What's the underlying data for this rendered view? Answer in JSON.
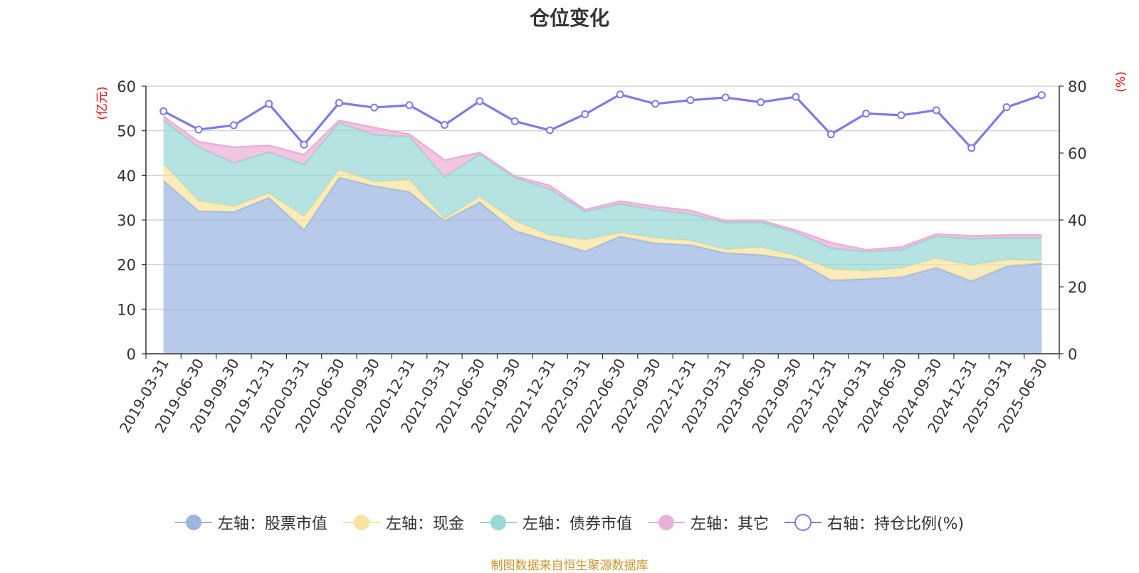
{
  "title": "仓位变化",
  "source_text": "制图数据来自恒生聚源数据库",
  "chart_data": {
    "type": "area",
    "categories": [
      "2019-03-31",
      "2019-06-30",
      "2019-09-30",
      "2019-12-31",
      "2020-03-31",
      "2020-06-30",
      "2020-09-30",
      "2020-12-31",
      "2021-03-31",
      "2021-06-30",
      "2021-09-30",
      "2021-12-31",
      "2022-03-31",
      "2022-06-30",
      "2022-09-30",
      "2022-12-31",
      "2023-03-31",
      "2023-06-30",
      "2023-09-30",
      "2023-12-31",
      "2024-03-31",
      "2024-06-30",
      "2024-09-30",
      "2024-12-31",
      "2025-03-31",
      "2025-06-30"
    ],
    "left_axis": {
      "unit": "(亿元)",
      "ylim": [
        0,
        60
      ],
      "ticks": [
        "0",
        "10",
        "20",
        "30",
        "40",
        "50",
        "60"
      ]
    },
    "right_axis": {
      "unit": "(%)",
      "ylim": [
        0,
        80
      ],
      "ticks": [
        "0",
        "20",
        "40",
        "60",
        "80"
      ]
    },
    "series": [
      {
        "name": "左轴：股票市值",
        "axis": "left",
        "stacked": true,
        "color": "#9bb6e2",
        "values": [
          38.8,
          32.0,
          31.8,
          35.0,
          27.8,
          39.5,
          37.6,
          36.3,
          29.8,
          34.0,
          27.6,
          25.3,
          23.0,
          26.3,
          24.8,
          24.4,
          22.6,
          22.2,
          21.0,
          16.5,
          16.8,
          17.2,
          19.3,
          16.3,
          19.6,
          20.3
        ]
      },
      {
        "name": "左轴：现金",
        "axis": "left",
        "stacked": true,
        "color": "#f8e3a1",
        "values": [
          3.8,
          2.3,
          1.3,
          1.0,
          3.0,
          1.8,
          1.0,
          2.7,
          0.5,
          1.2,
          2.2,
          1.3,
          2.6,
          0.8,
          1.2,
          1.0,
          0.8,
          1.7,
          1.0,
          2.5,
          1.8,
          2.0,
          2.1,
          3.5,
          1.5,
          0.6
        ]
      },
      {
        "name": "左轴：债券市值",
        "axis": "left",
        "stacked": true,
        "color": "#98d8d6",
        "values": [
          9.8,
          12.0,
          9.7,
          9.2,
          11.6,
          10.5,
          10.5,
          9.7,
          9.3,
          9.6,
          9.7,
          10.3,
          6.3,
          6.5,
          6.3,
          5.9,
          6.0,
          5.6,
          5.2,
          4.7,
          4.3,
          4.1,
          4.9,
          6.0,
          4.9,
          5.1
        ]
      },
      {
        "name": "左轴：其它",
        "axis": "left",
        "stacked": true,
        "color": "#eab0d6",
        "values": [
          0.8,
          1.2,
          3.5,
          1.5,
          2.2,
          0.5,
          1.6,
          0.5,
          3.8,
          0.3,
          0.3,
          0.8,
          0.4,
          0.6,
          0.7,
          0.8,
          0.4,
          0.4,
          0.5,
          1.2,
          0.4,
          0.6,
          0.5,
          0.6,
          0.6,
          0.6
        ]
      },
      {
        "name": "右轴：持仓比例(%)",
        "axis": "right",
        "type": "line",
        "color": "#7b7bea",
        "values": [
          72.5,
          67.0,
          68.3,
          74.7,
          62.5,
          75.0,
          73.6,
          74.3,
          68.4,
          75.5,
          69.5,
          66.8,
          71.6,
          77.5,
          74.7,
          75.8,
          76.6,
          75.2,
          76.8,
          65.6,
          71.8,
          71.3,
          72.8,
          61.5,
          73.7,
          77.3
        ]
      }
    ],
    "grid": true,
    "legend_position": "bottom"
  }
}
